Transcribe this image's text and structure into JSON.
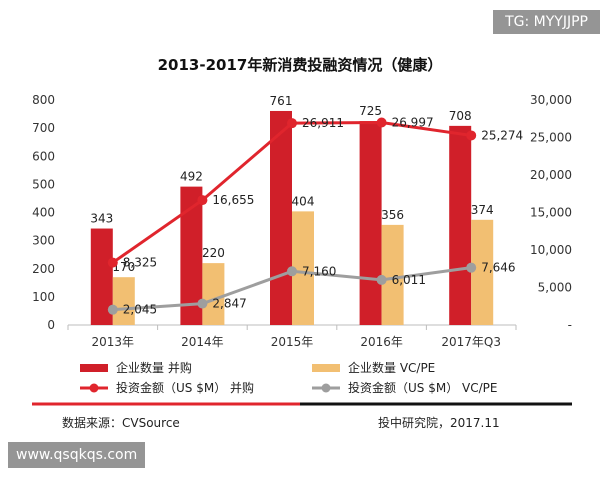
{
  "watermark_top": "TG: MYYJJPP",
  "watermark_bottom": "www.qsqkqs.com",
  "source_text": "数据来源：CVSource",
  "credit_text": "投中研究院，2017.11",
  "colors": {
    "red": "#d01f29",
    "gold": "#f2bf72",
    "grey": "#9e9e9e",
    "black": "#111111"
  },
  "chart_data": {
    "type": "bar",
    "title": "2013-2017年新消费投融资情况（健康）",
    "categories": [
      "2013年",
      "2014年",
      "2015年",
      "2016年",
      "2017年Q3"
    ],
    "left_axis": {
      "ylim": [
        0,
        800
      ],
      "ticks": [
        "0",
        "100",
        "200",
        "300",
        "400",
        "500",
        "600",
        "700",
        "800"
      ]
    },
    "right_axis": {
      "ylim": [
        0,
        30000
      ],
      "ticks": [
        "-",
        "5,000",
        "10,000",
        "15,000",
        "20,000",
        "25,000",
        "30,000"
      ]
    },
    "series": [
      {
        "name": "企业数量 并购",
        "kind": "bar",
        "axis": "left",
        "color": "#d01f29",
        "values": [
          343,
          492,
          761,
          725,
          708
        ],
        "labels": [
          "343",
          "492",
          "761",
          "725",
          "708"
        ]
      },
      {
        "name": "企业数量 VC/PE",
        "kind": "bar",
        "axis": "left",
        "color": "#f2bf72",
        "values": [
          170,
          220,
          404,
          356,
          374
        ],
        "labels": [
          "170",
          "220",
          "404",
          "356",
          "374"
        ]
      },
      {
        "name": "投资金额（US $M） 并购",
        "kind": "line",
        "axis": "right",
        "color": "#e0252d",
        "values": [
          8325,
          16655,
          26911,
          26997,
          25274
        ],
        "labels": [
          "8,325",
          "16,655",
          "26,911",
          "26,997",
          "25,274"
        ]
      },
      {
        "name": "投资金额（US $M） VC/PE",
        "kind": "line",
        "axis": "right",
        "color": "#9e9e9e",
        "values": [
          2045,
          2847,
          7160,
          6011,
          7646
        ],
        "labels": [
          "2,045",
          "2,847",
          "7,160",
          "6,011",
          "7,646"
        ]
      }
    ],
    "legend_position": "bottom",
    "grid": false
  }
}
